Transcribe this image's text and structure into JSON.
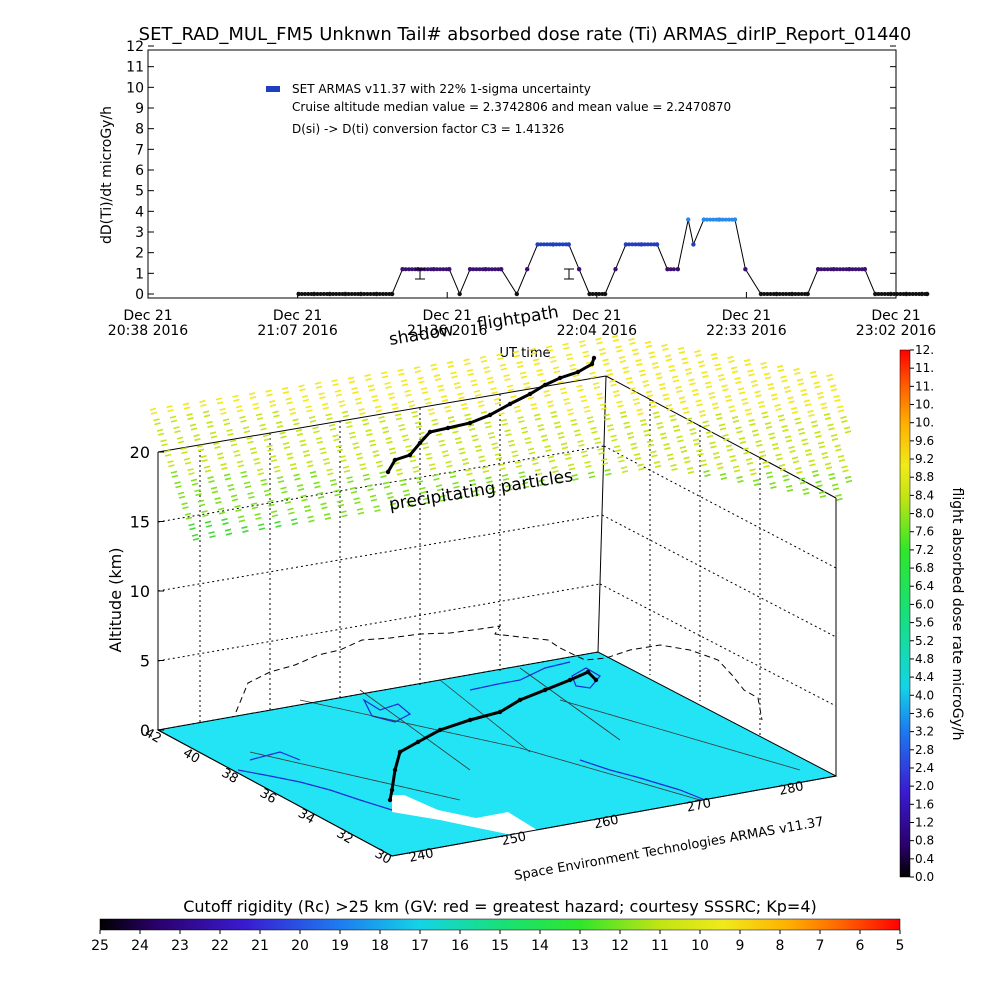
{
  "page_title": "SET_RAD_MUL_FM5 Unknwn Tail#  absorbed dose rate (Ti) ARMAS_dirIP_Report_01440",
  "chart_data": [
    {
      "type": "scatter",
      "ylabel": "dD(Ti)/dt microGy/h",
      "xlabel": "UT time",
      "ylim": [
        0,
        12
      ],
      "yticks": [
        "0",
        "1",
        "2",
        "3",
        "4",
        "5",
        "6",
        "7",
        "8",
        "9",
        "10",
        "11",
        "12"
      ],
      "xticks": [
        {
          "day": "Dec 21",
          "time": "20:38 2016"
        },
        {
          "day": "Dec 21",
          "time": "21:07 2016"
        },
        {
          "day": "Dec 21",
          "time": "21:36 2016"
        },
        {
          "day": "Dec 21",
          "time": "22:04 2016"
        },
        {
          "day": "Dec 21",
          "time": "22:33 2016"
        },
        {
          "day": "Dec 21",
          "time": "23:02 2016"
        }
      ],
      "xlim": [
        "20:38",
        "23:02"
      ],
      "legend": [
        "SET ARMAS v11.37 with 22% 1-sigma uncertainty",
        "Cruise altitude median value = 2.3742806 and mean value = 2.2470870",
        "D(si) -> D(ti) conversion factor C3 = 1.41326"
      ],
      "legend_marker_color": "#1f3fbf",
      "series": [
        {
          "values": [
            {
              "t": "21:07",
              "y": 0.0
            },
            {
              "t": "21:10",
              "y": 0.0
            },
            {
              "t": "21:13",
              "y": 0.0
            },
            {
              "t": "21:16",
              "y": 0.0
            },
            {
              "t": "21:19",
              "y": 0.0
            },
            {
              "t": "21:22",
              "y": 0.0
            },
            {
              "t": "21:25",
              "y": 0.0
            },
            {
              "t": "21:27",
              "y": 1.2
            },
            {
              "t": "21:30",
              "y": 1.2
            },
            {
              "t": "21:33",
              "y": 1.2
            },
            {
              "t": "21:36",
              "y": 1.2
            },
            {
              "t": "21:38",
              "y": 0.0
            },
            {
              "t": "21:40",
              "y": 1.2
            },
            {
              "t": "21:43",
              "y": 1.2
            },
            {
              "t": "21:46",
              "y": 1.2
            },
            {
              "t": "21:49",
              "y": 0.0
            },
            {
              "t": "21:51",
              "y": 1.2
            },
            {
              "t": "21:53",
              "y": 2.4
            },
            {
              "t": "21:56",
              "y": 2.4
            },
            {
              "t": "21:59",
              "y": 2.4
            },
            {
              "t": "22:01",
              "y": 1.2
            },
            {
              "t": "22:03",
              "y": 0.0
            },
            {
              "t": "22:06",
              "y": 0.0
            },
            {
              "t": "22:08",
              "y": 1.2
            },
            {
              "t": "22:10",
              "y": 2.4
            },
            {
              "t": "22:13",
              "y": 2.4
            },
            {
              "t": "22:16",
              "y": 2.4
            },
            {
              "t": "22:18",
              "y": 1.2
            },
            {
              "t": "22:20",
              "y": 1.2
            },
            {
              "t": "22:22",
              "y": 3.6
            },
            {
              "t": "22:23",
              "y": 2.4
            },
            {
              "t": "22:25",
              "y": 3.6
            },
            {
              "t": "22:28",
              "y": 3.6
            },
            {
              "t": "22:31",
              "y": 3.6
            },
            {
              "t": "22:33",
              "y": 1.2
            },
            {
              "t": "22:36",
              "y": 0.0
            },
            {
              "t": "22:39",
              "y": 0.0
            },
            {
              "t": "22:42",
              "y": 0.0
            },
            {
              "t": "22:45",
              "y": 0.0
            },
            {
              "t": "22:47",
              "y": 1.2
            },
            {
              "t": "22:50",
              "y": 1.2
            },
            {
              "t": "22:53",
              "y": 1.2
            },
            {
              "t": "22:56",
              "y": 1.2
            },
            {
              "t": "22:58",
              "y": 0.0
            },
            {
              "t": "23:01",
              "y": 0.0
            },
            {
              "t": "23:04",
              "y": 0.0
            },
            {
              "t": "23:07",
              "y": 0.0
            },
            {
              "t": "23:08",
              "y": 0.0
            }
          ]
        }
      ]
    },
    {
      "type": "scatter",
      "ylabel": "Altitude (km)",
      "zticks": [
        "0",
        "5",
        "10",
        "15",
        "20"
      ],
      "lat_ticks": [
        "42",
        "40",
        "38",
        "36",
        "34",
        "32",
        "30"
      ],
      "lon_ticks": [
        "240",
        "250",
        "260",
        "270",
        "280"
      ],
      "annotations": [
        "shadow",
        "flightpath",
        "precipitating particles",
        "Space Environment Technologies ARMAS v11.37"
      ],
      "colorbar_label": "flight absorbed dose rate microGy/h",
      "colorbar_ticks": [
        "0.0",
        "0.4",
        "0.8",
        "1.2",
        "1.6",
        "2.0",
        "2.4",
        "2.8",
        "3.2",
        "3.6",
        "4.0",
        "4.4",
        "4.8",
        "5.2",
        "5.6",
        "6.0",
        "6.4",
        "6.8",
        "7.2",
        "7.6",
        "8.0",
        "8.4",
        "8.8",
        "9.2",
        "9.6",
        "10.",
        "10.",
        "11.",
        "11.",
        "12."
      ],
      "ground_color": "#22e4f4"
    },
    {
      "type": "heatmap",
      "title": "Cutoff rigidity (Rc) >25 km (GV: red = greatest hazard; courtesy SSSRC; Kp=4)",
      "ticks": [
        "25",
        "24",
        "23",
        "22",
        "21",
        "20",
        "19",
        "18",
        "17",
        "16",
        "15",
        "14",
        "13",
        "12",
        "11",
        "10",
        "9",
        "8",
        "7",
        "6",
        "5"
      ]
    }
  ]
}
